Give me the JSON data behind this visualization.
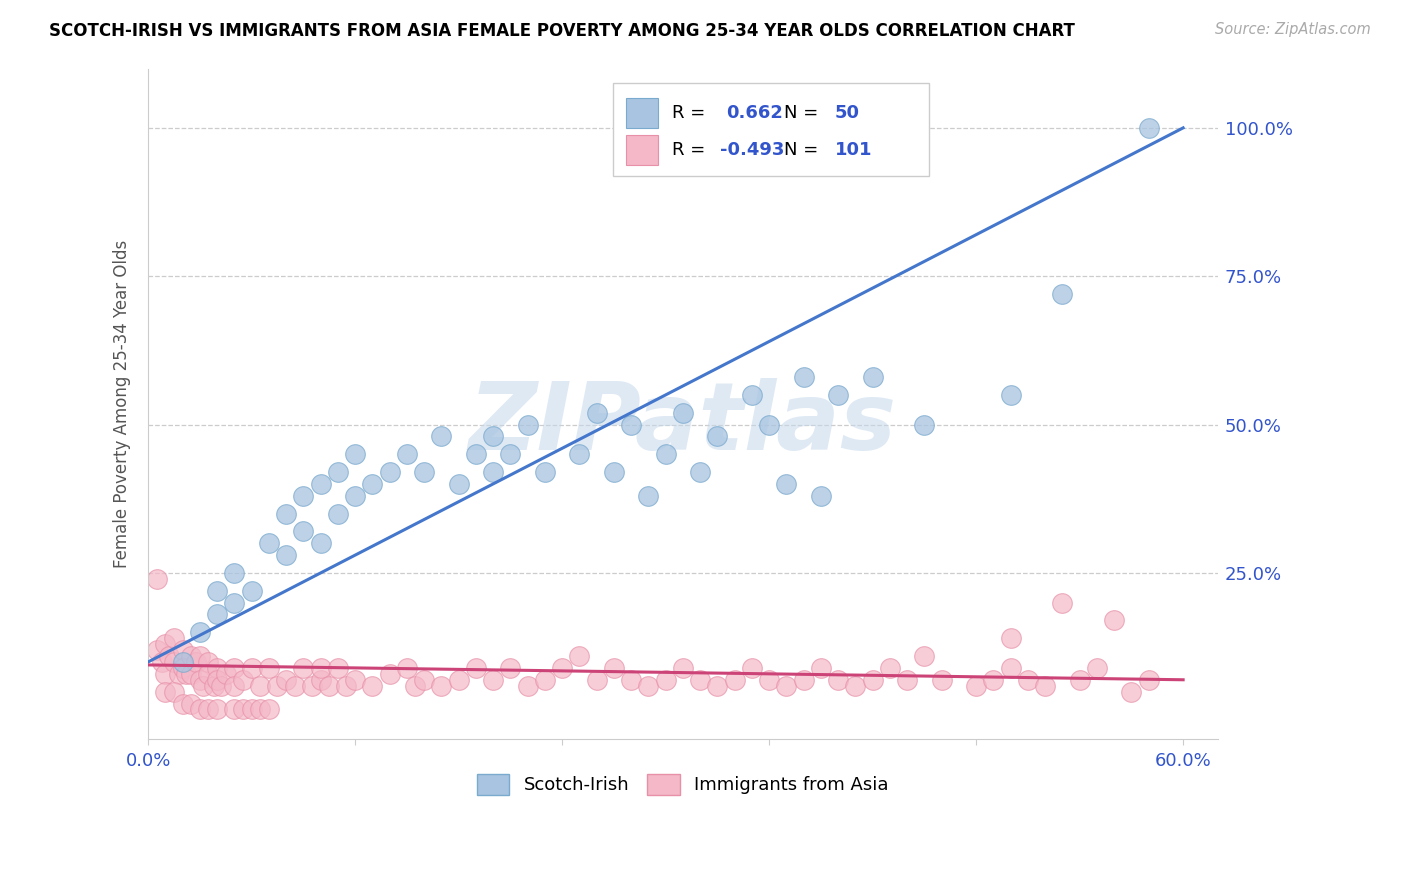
{
  "title": "SCOTCH-IRISH VS IMMIGRANTS FROM ASIA FEMALE POVERTY AMONG 25-34 YEAR OLDS CORRELATION CHART",
  "source": "Source: ZipAtlas.com",
  "ylabel": "Female Poverty Among 25-34 Year Olds",
  "xlim": [
    0.0,
    0.62
  ],
  "ylim": [
    -0.03,
    1.1
  ],
  "blue_R": 0.662,
  "blue_N": 50,
  "pink_R": -0.493,
  "pink_N": 101,
  "blue_color": "#A8C4E0",
  "blue_edge_color": "#7AAACE",
  "blue_line_color": "#4477CC",
  "pink_color": "#F4B8C8",
  "pink_edge_color": "#E890A8",
  "pink_line_color": "#CC4477",
  "stats_text_color": "#3355CC",
  "watermark": "ZIPatlas",
  "legend_label_blue": "Scotch-Irish",
  "legend_label_pink": "Immigrants from Asia",
  "blue_scatter_x": [
    0.02,
    0.03,
    0.04,
    0.04,
    0.05,
    0.05,
    0.06,
    0.07,
    0.08,
    0.08,
    0.09,
    0.09,
    0.1,
    0.1,
    0.11,
    0.11,
    0.12,
    0.12,
    0.13,
    0.14,
    0.15,
    0.16,
    0.17,
    0.18,
    0.19,
    0.2,
    0.2,
    0.21,
    0.22,
    0.23,
    0.25,
    0.26,
    0.27,
    0.28,
    0.29,
    0.3,
    0.31,
    0.32,
    0.33,
    0.35,
    0.36,
    0.37,
    0.38,
    0.39,
    0.4,
    0.42,
    0.45,
    0.5,
    0.53,
    0.58
  ],
  "blue_scatter_y": [
    0.1,
    0.15,
    0.18,
    0.22,
    0.2,
    0.25,
    0.22,
    0.3,
    0.28,
    0.35,
    0.32,
    0.38,
    0.3,
    0.4,
    0.35,
    0.42,
    0.38,
    0.45,
    0.4,
    0.42,
    0.45,
    0.42,
    0.48,
    0.4,
    0.45,
    0.42,
    0.48,
    0.45,
    0.5,
    0.42,
    0.45,
    0.52,
    0.42,
    0.5,
    0.38,
    0.45,
    0.52,
    0.42,
    0.48,
    0.55,
    0.5,
    0.4,
    0.58,
    0.38,
    0.55,
    0.58,
    0.5,
    0.55,
    0.72,
    1.0
  ],
  "pink_scatter_x": [
    0.005,
    0.008,
    0.01,
    0.01,
    0.012,
    0.015,
    0.015,
    0.018,
    0.02,
    0.02,
    0.022,
    0.025,
    0.025,
    0.028,
    0.03,
    0.03,
    0.032,
    0.035,
    0.035,
    0.038,
    0.04,
    0.04,
    0.042,
    0.045,
    0.05,
    0.05,
    0.055,
    0.06,
    0.065,
    0.07,
    0.075,
    0.08,
    0.085,
    0.09,
    0.095,
    0.1,
    0.1,
    0.105,
    0.11,
    0.115,
    0.12,
    0.13,
    0.14,
    0.15,
    0.155,
    0.16,
    0.17,
    0.18,
    0.19,
    0.2,
    0.21,
    0.22,
    0.23,
    0.24,
    0.25,
    0.26,
    0.27,
    0.28,
    0.29,
    0.3,
    0.31,
    0.32,
    0.33,
    0.34,
    0.35,
    0.36,
    0.37,
    0.38,
    0.39,
    0.4,
    0.41,
    0.42,
    0.43,
    0.44,
    0.45,
    0.46,
    0.48,
    0.49,
    0.5,
    0.51,
    0.52,
    0.53,
    0.54,
    0.55,
    0.56,
    0.57,
    0.58,
    0.005,
    0.01,
    0.015,
    0.02,
    0.025,
    0.03,
    0.035,
    0.04,
    0.05,
    0.055,
    0.06,
    0.065,
    0.07,
    0.5
  ],
  "pink_scatter_y": [
    0.12,
    0.1,
    0.13,
    0.08,
    0.11,
    0.1,
    0.14,
    0.08,
    0.12,
    0.09,
    0.08,
    0.11,
    0.08,
    0.1,
    0.11,
    0.07,
    0.06,
    0.1,
    0.08,
    0.06,
    0.09,
    0.07,
    0.06,
    0.08,
    0.09,
    0.06,
    0.07,
    0.09,
    0.06,
    0.09,
    0.06,
    0.07,
    0.06,
    0.09,
    0.06,
    0.07,
    0.09,
    0.06,
    0.09,
    0.06,
    0.07,
    0.06,
    0.08,
    0.09,
    0.06,
    0.07,
    0.06,
    0.07,
    0.09,
    0.07,
    0.09,
    0.06,
    0.07,
    0.09,
    0.11,
    0.07,
    0.09,
    0.07,
    0.06,
    0.07,
    0.09,
    0.07,
    0.06,
    0.07,
    0.09,
    0.07,
    0.06,
    0.07,
    0.09,
    0.07,
    0.06,
    0.07,
    0.09,
    0.07,
    0.11,
    0.07,
    0.06,
    0.07,
    0.09,
    0.07,
    0.06,
    0.2,
    0.07,
    0.09,
    0.17,
    0.05,
    0.07,
    0.24,
    0.05,
    0.05,
    0.03,
    0.03,
    0.02,
    0.02,
    0.02,
    0.02,
    0.02,
    0.02,
    0.02,
    0.02,
    0.14
  ],
  "blue_line_x0": 0.0,
  "blue_line_y0": 0.1,
  "blue_line_x1": 0.6,
  "blue_line_y1": 1.0,
  "pink_line_x0": 0.0,
  "pink_line_y0": 0.095,
  "pink_line_x1": 0.6,
  "pink_line_y1": 0.07,
  "grid_color": "#CCCCCC",
  "grid_linestyle": "--",
  "axis_color": "#CCCCCC",
  "title_fontsize": 12,
  "tick_fontsize": 13,
  "ylabel_fontsize": 12,
  "marker_size": 200,
  "line_width": 2.2
}
